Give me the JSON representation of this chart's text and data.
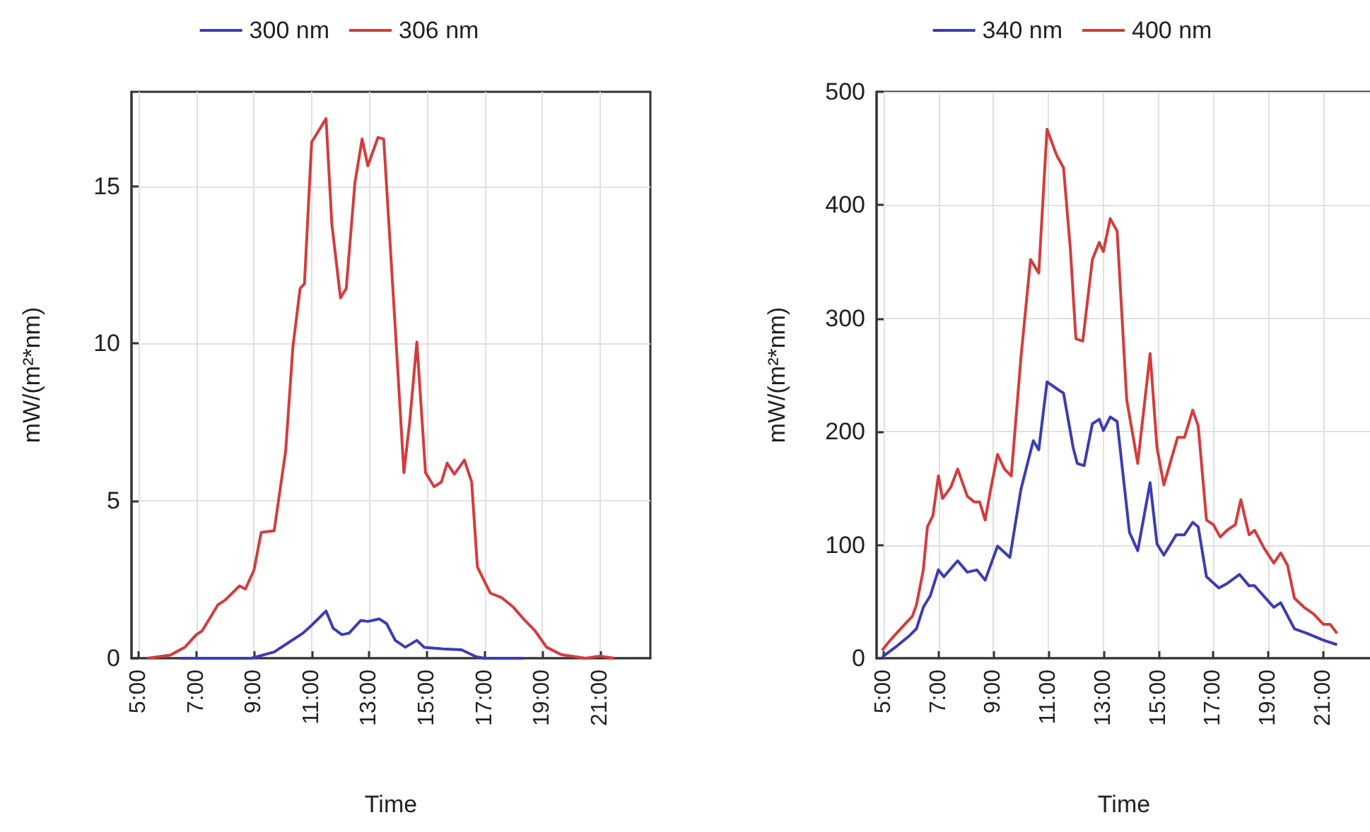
{
  "chart_data": [
    {
      "type": "line",
      "xlabel": "Time",
      "ylabel": "mW/(m²*nm)",
      "legend": "top",
      "grid": true,
      "marker": "none",
      "line_style": "solid",
      "xlim": [
        4.75,
        22.75
      ],
      "xticks": [
        {
          "value": 5,
          "label": "5:00"
        },
        {
          "value": 7,
          "label": "7:00"
        },
        {
          "value": 9,
          "label": "9:00"
        },
        {
          "value": 11,
          "label": "11:00"
        },
        {
          "value": 13,
          "label": "13:00"
        },
        {
          "value": 15,
          "label": "15:00"
        },
        {
          "value": 17,
          "label": "17:00"
        },
        {
          "value": 19,
          "label": "19:00"
        },
        {
          "value": 21,
          "label": "21:00"
        }
      ],
      "ylim": [
        0,
        18
      ],
      "yticks": [
        0,
        5,
        10,
        15
      ],
      "series": [
        {
          "name": "300 nm",
          "color": "#3c3cb4",
          "x": [
            6.4,
            8.9,
            9.7,
            10.2,
            10.7,
            11.0,
            11.5,
            11.75,
            12.05,
            12.3,
            12.7,
            12.95,
            13.35,
            13.6,
            13.9,
            14.25,
            14.65,
            14.9,
            15.55,
            16.2,
            16.7,
            17.0,
            18.35
          ],
          "values": [
            0,
            0,
            0.2,
            0.5,
            0.8,
            1.05,
            1.5,
            0.95,
            0.75,
            0.8,
            1.2,
            1.17,
            1.25,
            1.1,
            0.57,
            0.35,
            0.57,
            0.35,
            0.3,
            0.27,
            0.05,
            0,
            0
          ]
        },
        {
          "name": "306 nm",
          "color": "#d43c3c",
          "x": [
            5.3,
            6.1,
            6.6,
            7.0,
            7.2,
            7.75,
            8.0,
            8.5,
            8.7,
            9.0,
            9.25,
            9.7,
            10.1,
            10.35,
            10.6,
            10.75,
            11.0,
            11.5,
            11.7,
            12.0,
            12.2,
            12.5,
            12.75,
            12.95,
            13.3,
            13.5,
            13.9,
            14.2,
            14.4,
            14.65,
            14.95,
            15.25,
            15.5,
            15.7,
            15.95,
            16.3,
            16.55,
            16.75,
            17.2,
            17.6,
            18.0,
            18.35,
            18.75,
            19.15,
            19.65,
            20.5,
            21.0,
            21.5
          ],
          "values": [
            0,
            0.1,
            0.35,
            0.75,
            0.87,
            1.7,
            1.85,
            2.3,
            2.2,
            2.8,
            4.0,
            4.05,
            6.6,
            9.9,
            11.75,
            11.9,
            16.4,
            17.15,
            13.8,
            11.45,
            11.75,
            15.1,
            16.5,
            15.65,
            16.55,
            16.5,
            10.5,
            5.9,
            7.5,
            10.05,
            5.9,
            5.45,
            5.6,
            6.2,
            5.85,
            6.3,
            5.6,
            2.9,
            2.07,
            1.92,
            1.62,
            1.25,
            0.87,
            0.35,
            0.12,
            0,
            0.07,
            0
          ]
        }
      ]
    },
    {
      "type": "line",
      "xlabel": "Time",
      "ylabel": "mW/(m²*nm)",
      "legend": "top",
      "grid": true,
      "marker": "none",
      "line_style": "solid",
      "xlim": [
        4.75,
        22.75
      ],
      "xticks": [
        {
          "value": 5,
          "label": "5:00"
        },
        {
          "value": 7,
          "label": "7:00"
        },
        {
          "value": 9,
          "label": "9:00"
        },
        {
          "value": 11,
          "label": "11:00"
        },
        {
          "value": 13,
          "label": "13:00"
        },
        {
          "value": 15,
          "label": "15:00"
        },
        {
          "value": 17,
          "label": "17:00"
        },
        {
          "value": 19,
          "label": "19:00"
        },
        {
          "value": 21,
          "label": "21:00"
        }
      ],
      "ylim": [
        0,
        500
      ],
      "yticks": [
        0,
        100,
        200,
        300,
        400,
        500
      ],
      "series": [
        {
          "name": "340 nm",
          "color": "#3c3cb4",
          "x": [
            4.95,
            5.45,
            5.95,
            6.2,
            6.45,
            6.7,
            7.0,
            7.2,
            7.7,
            8.05,
            8.4,
            8.7,
            9.15,
            9.6,
            10.0,
            10.45,
            10.65,
            10.95,
            11.3,
            11.55,
            11.9,
            12.05,
            12.3,
            12.6,
            12.85,
            13.0,
            13.25,
            13.5,
            13.95,
            14.25,
            14.7,
            14.95,
            15.2,
            15.65,
            15.95,
            16.25,
            16.45,
            16.75,
            17.2,
            17.5,
            17.95,
            18.3,
            18.5,
            19.2,
            19.45,
            19.95,
            20.4,
            21.0,
            21.5
          ],
          "values": [
            1,
            10,
            20,
            26,
            45,
            55,
            78,
            72,
            86,
            76,
            78,
            69,
            99,
            89,
            149,
            192,
            184,
            244,
            238,
            234,
            186,
            172,
            170,
            207,
            211,
            201,
            213,
            209,
            111,
            95,
            155,
            101,
            91,
            109,
            109,
            120,
            116,
            72,
            62,
            66,
            74,
            64,
            64,
            45,
            49,
            26,
            22,
            16,
            12
          ]
        },
        {
          "name": "400 nm",
          "color": "#d43c3c",
          "x": [
            4.95,
            5.25,
            5.7,
            6.05,
            6.2,
            6.45,
            6.6,
            6.8,
            7.0,
            7.15,
            7.45,
            7.7,
            8.05,
            8.3,
            8.5,
            8.7,
            8.9,
            9.15,
            9.4,
            9.65,
            10.0,
            10.35,
            10.65,
            10.95,
            11.3,
            11.55,
            11.8,
            12.0,
            12.25,
            12.6,
            12.85,
            13.0,
            13.25,
            13.5,
            13.85,
            14.25,
            14.7,
            14.95,
            15.2,
            15.45,
            15.7,
            15.95,
            16.25,
            16.45,
            16.75,
            17.0,
            17.25,
            17.5,
            17.8,
            18.0,
            18.3,
            18.5,
            18.85,
            19.2,
            19.45,
            19.7,
            19.95,
            20.3,
            20.65,
            21.0,
            21.25,
            21.5
          ],
          "values": [
            7,
            16,
            28,
            37,
            47,
            78,
            116,
            126,
            161,
            141,
            151,
            167,
            143,
            138,
            138,
            122,
            149,
            180,
            167,
            161,
            265,
            352,
            340,
            467,
            444,
            433,
            361,
            282,
            280,
            352,
            367,
            359,
            388,
            377,
            228,
            172,
            269,
            186,
            153,
            174,
            195,
            195,
            219,
            205,
            122,
            118,
            107,
            113,
            118,
            140,
            109,
            113,
            97,
            84,
            93,
            82,
            53,
            45,
            39,
            30,
            30,
            22
          ]
        }
      ]
    }
  ]
}
